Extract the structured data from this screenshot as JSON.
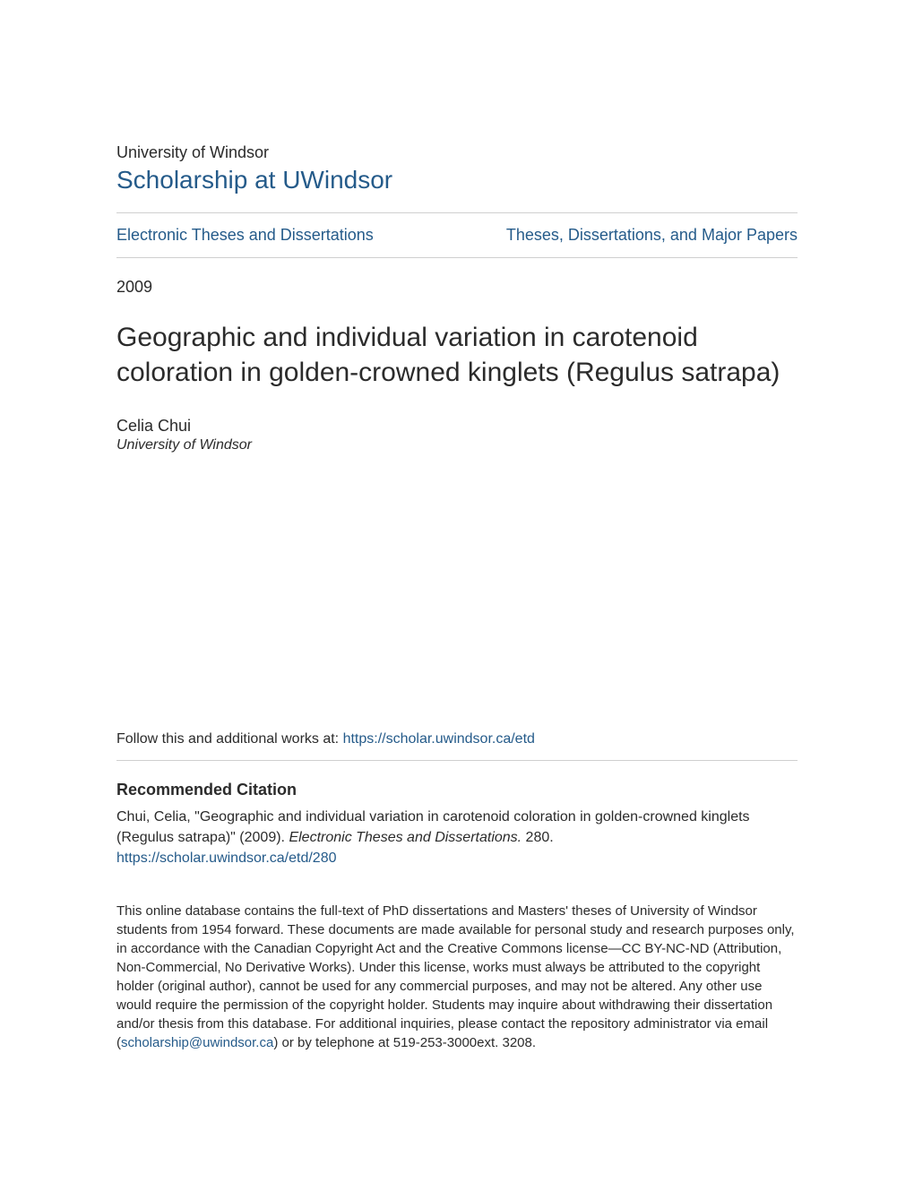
{
  "header": {
    "institution": "University of Windsor",
    "repository_name": "Scholarship at UWindsor"
  },
  "nav": {
    "left_link": "Electronic Theses and Dissertations",
    "right_link": "Theses, Dissertations, and Major Papers"
  },
  "meta": {
    "year": "2009"
  },
  "title": "Geographic and individual variation in carotenoid coloration in golden-crowned kinglets (Regulus satrapa)",
  "author": {
    "name": "Celia Chui",
    "affiliation": "University of Windsor"
  },
  "follow": {
    "prefix": "Follow this and additional works at: ",
    "url": "https://scholar.uwindsor.ca/etd"
  },
  "citation": {
    "heading": "Recommended Citation",
    "line1": "Chui, Celia, \"Geographic and individual variation in carotenoid coloration in golden-crowned kinglets (Regulus satrapa)\" (2009). ",
    "line2_italic": "Electronic Theses and Dissertations.",
    "line2_rest": " 280.",
    "link": "https://scholar.uwindsor.ca/etd/280"
  },
  "footer": {
    "text_part1": "This online database contains the full-text of PhD dissertations and Masters' theses of University of Windsor students from 1954 forward. These documents are made available for personal study and research purposes only, in accordance with the Canadian Copyright Act and the Creative Commons license—CC BY-NC-ND (Attribution, Non-Commercial, No Derivative Works). Under this license, works must always be attributed to the copyright holder (original author), cannot be used for any commercial purposes, and may not be altered. Any other use would require the permission of the copyright holder. Students may inquire about withdrawing their dissertation and/or thesis from this database. For additional inquiries, please contact the repository administrator via email (",
    "email": "scholarship@uwindsor.ca",
    "text_part2": ") or by telephone at 519-253-3000ext. 3208."
  },
  "colors": {
    "link": "#255b8a",
    "text": "#2b2b2b",
    "rule": "#cfcfcf",
    "background": "#ffffff"
  }
}
